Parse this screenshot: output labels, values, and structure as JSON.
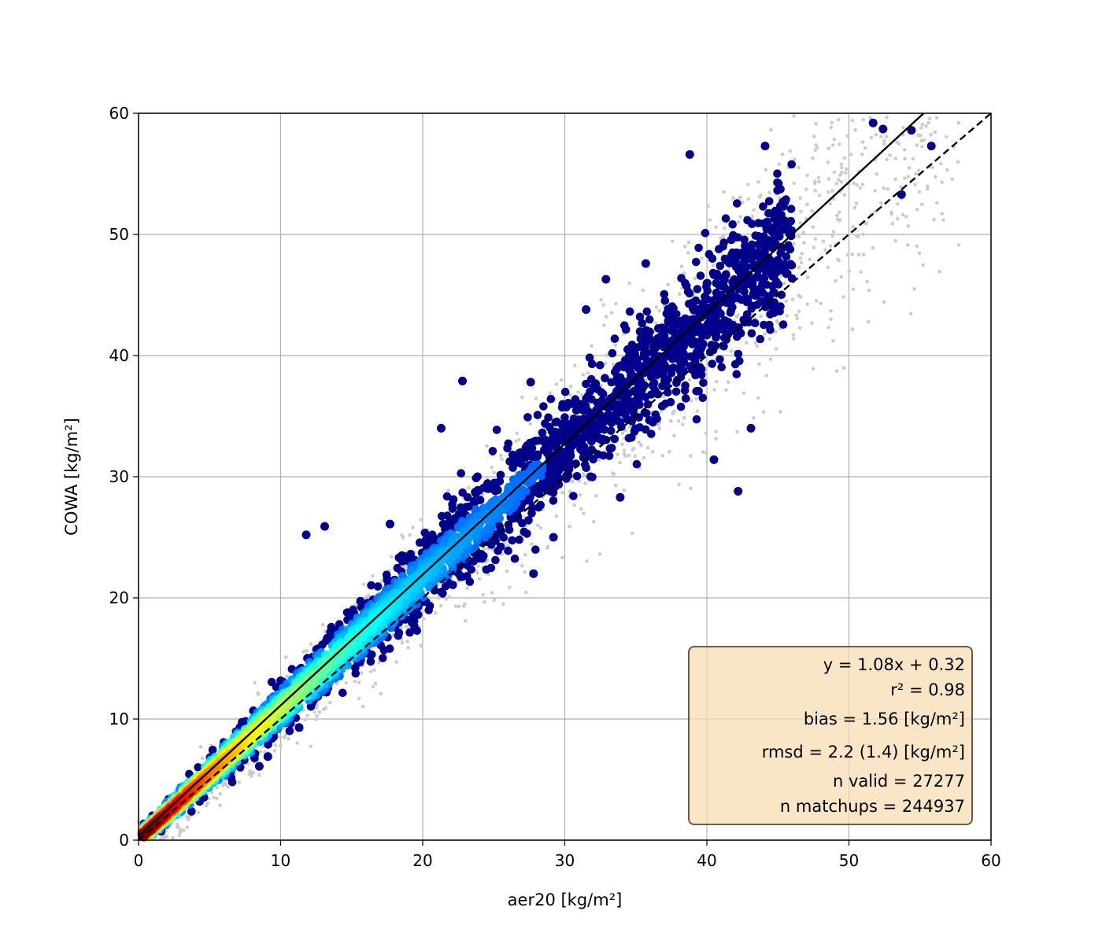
{
  "chart_data": {
    "type": "scatter",
    "title": "",
    "xlabel": "aer20 [kg/m²]",
    "ylabel": "COWA [kg/m²]",
    "xlim": [
      0,
      60
    ],
    "ylim": [
      0,
      60
    ],
    "xticks": [
      0,
      10,
      20,
      30,
      40,
      50,
      60
    ],
    "yticks": [
      0,
      10,
      20,
      30,
      40,
      50,
      60
    ],
    "grid": true,
    "colormap": "jet (point density)",
    "colors": {
      "invalid_points": "#cccccc",
      "low_density": "#00008b",
      "high_density": "#ff2000",
      "stats_box_fill": "#f5deb3",
      "stats_box_edge": "#5a4a3a"
    },
    "series": [
      {
        "name": "",
        "kind": "density-colored points",
        "trend": "dense cluster along y = 1.08x + 0.32 from (0,0) to about (57,59)",
        "points": [
          {
            "x": 38.8,
            "y": 56.6
          },
          {
            "x": 44.1,
            "y": 57.3
          },
          {
            "x": 51.7,
            "y": 59.2
          },
          {
            "x": 52.4,
            "y": 58.7
          },
          {
            "x": 54.4,
            "y": 58.6
          },
          {
            "x": 55.8,
            "y": 57.3
          },
          {
            "x": 53.7,
            "y": 53.3
          },
          {
            "x": 22.8,
            "y": 37.9
          },
          {
            "x": 27.6,
            "y": 37.8
          },
          {
            "x": 32.9,
            "y": 46.3
          },
          {
            "x": 35.7,
            "y": 47.6
          },
          {
            "x": 31.5,
            "y": 43.8
          },
          {
            "x": 40.5,
            "y": 31.4
          },
          {
            "x": 42.2,
            "y": 28.8
          },
          {
            "x": 43.1,
            "y": 34.0
          },
          {
            "x": 11.8,
            "y": 25.2
          },
          {
            "x": 13.1,
            "y": 25.9
          },
          {
            "x": 17.7,
            "y": 26.1
          },
          {
            "x": 21.3,
            "y": 34.0
          },
          {
            "x": 27.8,
            "y": 22.0
          },
          {
            "x": 29.2,
            "y": 25.0
          },
          {
            "x": 33.9,
            "y": 28.3
          },
          {
            "x": 9.1,
            "y": 6.9
          },
          {
            "x": 8.5,
            "y": 6.1
          },
          {
            "x": 11.3,
            "y": 9.3
          }
        ]
      },
      {
        "name": "",
        "kind": "regression line (solid)",
        "slope": 1.08,
        "intercept": 0.32
      },
      {
        "name": "",
        "kind": "1:1 line (dashed)",
        "slope": 1,
        "intercept": 0
      }
    ],
    "stats_box": {
      "placement": "bottom-right",
      "lines": [
        "y = 1.08x + 0.32 ",
        "r² = 0.98",
        "bias = 1.56 [kg/m²]",
        "rmsd = 2.2 (1.4) [kg/m²]",
        "n valid = 27277 ",
        "n matchups = 244937"
      ]
    }
  }
}
